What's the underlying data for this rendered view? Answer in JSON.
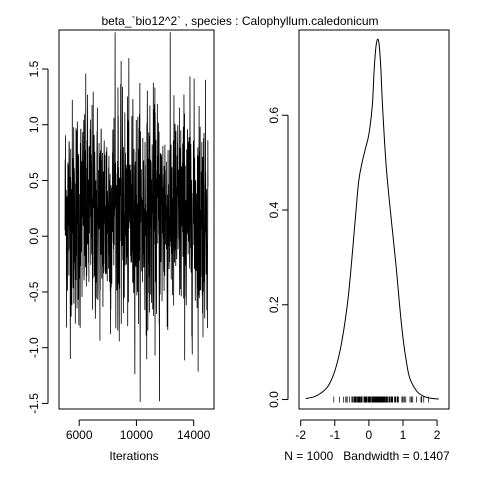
{
  "title": "beta_`bio12^2` , species :  Calophyllum.caledonicum",
  "chart_data": [
    {
      "type": "line",
      "name": "trace",
      "xlabel": "Iterations",
      "ylabel": "",
      "x_ticks": [
        6000,
        10000,
        14000
      ],
      "y_ticks": [
        -1.5,
        -1.0,
        -0.5,
        0.0,
        0.5,
        1.0,
        1.5
      ],
      "y_tick_labels": [
        "-1.5",
        "-1.0",
        "-0.5",
        "0.0",
        "0.5",
        "1.0",
        "1.5"
      ],
      "x_range": [
        5010,
        15000
      ],
      "ylim": [
        -1.55,
        1.85
      ],
      "n_samples": 1000,
      "sample_mean": 0.21,
      "sample_sd": 0.5,
      "extremes": {
        "max": 1.83,
        "min": -1.48
      },
      "grid": false
    },
    {
      "type": "line",
      "name": "density",
      "xlabel": "N = 1000   Bandwidth = 0.1407",
      "ylabel": "",
      "x_ticks": [
        -2,
        -1,
        0,
        1,
        2
      ],
      "x_tick_labels": [
        "-2",
        "-1",
        "0",
        "1",
        "2"
      ],
      "y_ticks": [
        0.0,
        0.2,
        0.4,
        0.6
      ],
      "y_tick_labels": [
        "0.0",
        "0.2",
        "0.4",
        "0.6"
      ],
      "xlim": [
        -2.05,
        2.35
      ],
      "ylim": [
        -0.02,
        0.78
      ],
      "density_curve": {
        "x": [
          -1.85,
          -1.6,
          -1.4,
          -1.2,
          -1.0,
          -0.8,
          -0.6,
          -0.4,
          -0.3,
          -0.2,
          -0.1,
          0.0,
          0.1,
          0.15,
          0.2,
          0.25,
          0.3,
          0.35,
          0.4,
          0.5,
          0.6,
          0.7,
          0.8,
          0.9,
          1.0,
          1.1,
          1.2,
          1.4,
          1.6,
          1.8,
          2.05
        ],
        "y": [
          0.002,
          0.006,
          0.014,
          0.028,
          0.06,
          0.12,
          0.22,
          0.38,
          0.46,
          0.5,
          0.53,
          0.56,
          0.62,
          0.69,
          0.74,
          0.76,
          0.75,
          0.7,
          0.62,
          0.5,
          0.42,
          0.35,
          0.28,
          0.2,
          0.13,
          0.08,
          0.045,
          0.018,
          0.007,
          0.003,
          0.001
        ]
      },
      "rug": true,
      "grid": false
    }
  ]
}
